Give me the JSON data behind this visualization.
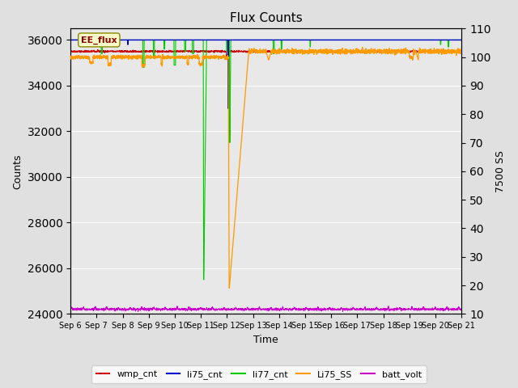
{
  "title": "Flux Counts",
  "ylabel_left": "Counts",
  "ylabel_right": "7500 SS",
  "xlabel": "Time",
  "xlim": [
    0,
    15
  ],
  "ylim_left": [
    24000,
    36500
  ],
  "ylim_right": [
    10,
    110
  ],
  "yticks_left": [
    24000,
    26000,
    28000,
    30000,
    32000,
    34000,
    36000
  ],
  "yticks_right": [
    10,
    20,
    30,
    40,
    50,
    60,
    70,
    80,
    90,
    100,
    110
  ],
  "xtick_labels": [
    "Sep 6",
    "Sep 7",
    "Sep 8",
    "Sep 9",
    "Sep 10",
    "Sep 11",
    "Sep 12",
    "Sep 13",
    "Sep 14",
    "Sep 15",
    "Sep 16",
    "Sep 17",
    "Sep 18",
    "Sep 19",
    "Sep 20",
    "Sep 21"
  ],
  "bg_color": "#e0e0e0",
  "plot_bg_color": "#e8e8e8",
  "annotation_label": "EE_flux",
  "colors": {
    "wmp_cnt": "#cc0000",
    "li75_cnt": "#0000cc",
    "li77_cnt": "#00cc00",
    "Li75_SS": "#ff9900",
    "batt_volt": "#cc00cc"
  },
  "legend_entries": [
    "wmp_cnt",
    "li75_cnt",
    "li77_cnt",
    "Li75_SS",
    "batt_volt"
  ]
}
